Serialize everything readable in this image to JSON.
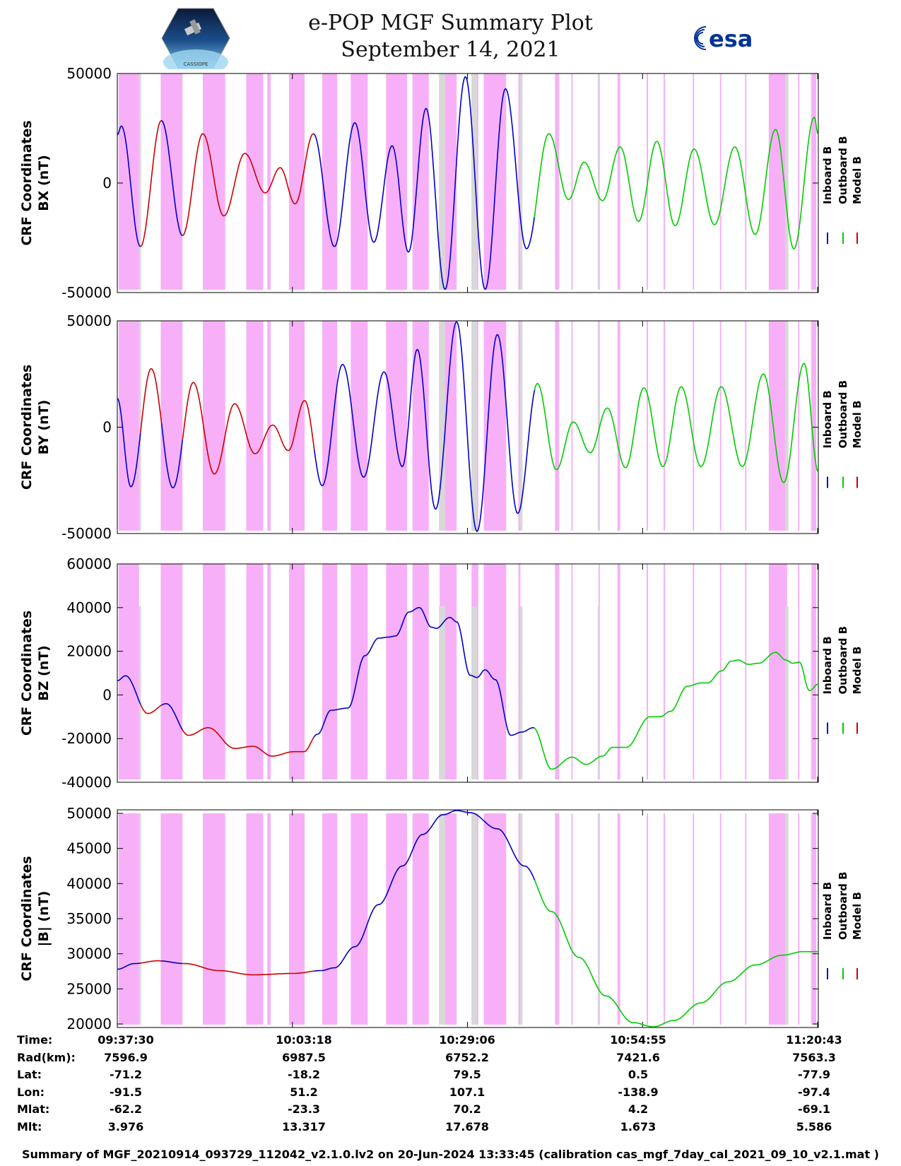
{
  "header": {
    "title": "e-POP MGF Summary Plot",
    "date": "September 14, 2021",
    "logo_left": "cassiope-satellite-logo",
    "logo_right_text": "esa",
    "logo_left_caption": "CASSIOPE"
  },
  "colors": {
    "inboard": "#0000cc",
    "outboard": "#00cc00",
    "model": "#cc0000",
    "band_magenta": "#f7b0f7",
    "band_gray": "#d8d8d8",
    "esa_blue": "#003399"
  },
  "chart_data": [
    {
      "type": "line",
      "ylabel": "CRF Coordinates BX (nT)",
      "ylabel_lines": [
        "CRF Coordinates",
        "BX (nT)"
      ],
      "ylim": [
        -50000,
        50000
      ],
      "yticks": [
        -50000,
        0,
        50000
      ],
      "xlim_minutes": [
        0,
        103.3
      ],
      "legend": [
        "Inboard B",
        "Outboard B",
        "Model B"
      ],
      "extrema": [
        [
          0,
          22000
        ],
        [
          0.6,
          26000
        ],
        [
          3.4,
          -29000
        ],
        [
          6.5,
          28500
        ],
        [
          9.6,
          -24000
        ],
        [
          12.6,
          22500
        ],
        [
          15.7,
          -15000
        ],
        [
          18.8,
          13500
        ],
        [
          21.8,
          -4500
        ],
        [
          24.0,
          7000
        ],
        [
          26.2,
          -9500
        ],
        [
          28.9,
          22500
        ],
        [
          32.0,
          -29000
        ],
        [
          35.0,
          27500
        ],
        [
          37.8,
          -27000
        ],
        [
          40.5,
          17000
        ],
        [
          42.9,
          -31500
        ],
        [
          45.5,
          34000
        ],
        [
          48.3,
          -48500
        ],
        [
          51.3,
          48500
        ],
        [
          54.2,
          -48500
        ],
        [
          57.2,
          43000
        ],
        [
          60.3,
          -30000
        ],
        [
          63.6,
          22500
        ],
        [
          66.5,
          -7500
        ],
        [
          68.8,
          9500
        ],
        [
          71.5,
          -8000
        ],
        [
          74.1,
          16500
        ],
        [
          76.8,
          -17500
        ],
        [
          79.5,
          19000
        ],
        [
          82.2,
          -19500
        ],
        [
          85.0,
          15500
        ],
        [
          88.0,
          -19000
        ],
        [
          91.0,
          16500
        ],
        [
          94.0,
          -23500
        ],
        [
          97.0,
          24500
        ],
        [
          99.7,
          -30000
        ],
        [
          102.7,
          30000
        ],
        [
          103.3,
          22000
        ]
      ]
    },
    {
      "type": "line",
      "ylabel": "CRF Coordinates BY (nT)",
      "ylabel_lines": [
        "CRF Coordinates",
        "BY (nT)"
      ],
      "ylim": [
        -50000,
        50000
      ],
      "yticks": [
        -50000,
        0,
        50000
      ],
      "xlim_minutes": [
        0,
        103.3
      ],
      "legend": [
        "Inboard B",
        "Outboard B",
        "Model B"
      ],
      "extrema": [
        [
          0,
          13500
        ],
        [
          2.0,
          -28000
        ],
        [
          5.0,
          27500
        ],
        [
          8.2,
          -28500
        ],
        [
          11.2,
          21000
        ],
        [
          14.3,
          -22000
        ],
        [
          17.3,
          11000
        ],
        [
          20.3,
          -12500
        ],
        [
          22.9,
          1000
        ],
        [
          25.2,
          -11000
        ],
        [
          27.6,
          12500
        ],
        [
          30.2,
          -27500
        ],
        [
          33.2,
          29500
        ],
        [
          36.3,
          -23500
        ],
        [
          39.3,
          26000
        ],
        [
          42.0,
          -18500
        ],
        [
          44.2,
          36500
        ],
        [
          46.9,
          -38500
        ],
        [
          50.0,
          49500
        ],
        [
          53.0,
          -49000
        ],
        [
          56.0,
          43500
        ],
        [
          59.0,
          -40500
        ],
        [
          61.9,
          20500
        ],
        [
          64.7,
          -20000
        ],
        [
          67.2,
          2500
        ],
        [
          69.7,
          -12000
        ],
        [
          72.2,
          9000
        ],
        [
          74.9,
          -19000
        ],
        [
          77.6,
          18500
        ],
        [
          80.4,
          -18500
        ],
        [
          83.1,
          19000
        ],
        [
          86.0,
          -18500
        ],
        [
          89.0,
          19000
        ],
        [
          92.1,
          -18500
        ],
        [
          95.2,
          25000
        ],
        [
          98.2,
          -26000
        ],
        [
          101.2,
          30000
        ],
        [
          103.3,
          -21000
        ]
      ]
    },
    {
      "type": "line",
      "ylabel": "CRF Coordinates BZ (nT)",
      "ylabel_lines": [
        "CRF Coordinates",
        "BZ (nT)"
      ],
      "ylim": [
        -40000,
        60000
      ],
      "yticks": [
        -40000,
        -20000,
        0,
        20000,
        40000,
        60000
      ],
      "xlim_minutes": [
        0,
        103.3
      ],
      "legend": [
        "Inboard B",
        "Outboard B",
        "Model B"
      ],
      "extrema": [
        [
          0,
          6500
        ],
        [
          1.2,
          8800
        ],
        [
          4.5,
          -8500
        ],
        [
          7.2,
          -4000
        ],
        [
          10.5,
          -18500
        ],
        [
          13.4,
          -15000
        ],
        [
          17.3,
          -24500
        ],
        [
          20.0,
          -23500
        ],
        [
          22.8,
          -28000
        ],
        [
          26.0,
          -26000
        ],
        [
          27.5,
          -26000
        ],
        [
          29.5,
          -18000
        ],
        [
          31.5,
          -7000
        ],
        [
          34.0,
          -6000
        ],
        [
          36.5,
          18000
        ],
        [
          38.5,
          26000
        ],
        [
          40.0,
          26500
        ],
        [
          41.0,
          27000
        ],
        [
          43.0,
          38000
        ],
        [
          44.5,
          40000
        ],
        [
          46.3,
          31000
        ],
        [
          47.0,
          30500
        ],
        [
          49.0,
          35500
        ],
        [
          50.0,
          33500
        ],
        [
          52.0,
          9000
        ],
        [
          53.0,
          8000
        ],
        [
          54.2,
          11500
        ],
        [
          55.7,
          7000
        ],
        [
          58.0,
          -18500
        ],
        [
          59.6,
          -17000
        ],
        [
          61.3,
          -15000
        ],
        [
          64.0,
          -34000
        ],
        [
          67.0,
          -28500
        ],
        [
          69.1,
          -31800
        ],
        [
          71.5,
          -28000
        ],
        [
          73.0,
          -24000
        ],
        [
          75.0,
          -24000
        ],
        [
          78.5,
          -10000
        ],
        [
          80.0,
          -10000
        ],
        [
          81.5,
          -7500
        ],
        [
          84.0,
          4000
        ],
        [
          86.0,
          5500
        ],
        [
          87.0,
          5500
        ],
        [
          89.0,
          11000
        ],
        [
          90.5,
          15500
        ],
        [
          91.5,
          16000
        ],
        [
          93.0,
          14000
        ],
        [
          94.5,
          14500
        ],
        [
          97.0,
          19500
        ],
        [
          98.5,
          16000
        ],
        [
          99.5,
          14500
        ],
        [
          100.5,
          15000
        ],
        [
          102.0,
          2000
        ],
        [
          103.3,
          5000
        ]
      ]
    },
    {
      "type": "line",
      "ylabel": "CRF Coordinates |B| (nT)",
      "ylabel_lines": [
        "CRF Coordinates",
        "|B| (nT)"
      ],
      "ylim": [
        19500,
        50500
      ],
      "yticks": [
        20000,
        25000,
        30000,
        35000,
        40000,
        45000,
        50000
      ],
      "xlim_minutes": [
        0,
        103.3
      ],
      "legend": [
        "Inboard B",
        "Outboard B",
        "Model B"
      ],
      "extrema": [
        [
          0,
          27800
        ],
        [
          2.5,
          28600
        ],
        [
          6.0,
          29000
        ],
        [
          10.0,
          28600
        ],
        [
          15.0,
          27600
        ],
        [
          20.0,
          27000
        ],
        [
          26.0,
          27200
        ],
        [
          30.0,
          27600
        ],
        [
          32.0,
          28000
        ],
        [
          35.0,
          31000
        ],
        [
          38.5,
          37000
        ],
        [
          42.0,
          42500
        ],
        [
          45.0,
          47000
        ],
        [
          48.0,
          49800
        ],
        [
          50.0,
          50400
        ],
        [
          52.0,
          50100
        ],
        [
          56.0,
          47800
        ],
        [
          60.0,
          42500
        ],
        [
          64.0,
          36000
        ],
        [
          68.0,
          29500
        ],
        [
          72.0,
          24000
        ],
        [
          76.0,
          20200
        ],
        [
          79.0,
          19600
        ],
        [
          82.0,
          20500
        ],
        [
          86.0,
          23000
        ],
        [
          90.0,
          26000
        ],
        [
          94.0,
          28400
        ],
        [
          98.0,
          29800
        ],
        [
          101.0,
          30300
        ],
        [
          103.3,
          30300
        ]
      ]
    }
  ],
  "series_segments": [
    {
      "from": 0,
      "to": 3.4,
      "kind": "inboard"
    },
    {
      "from": 3.4,
      "to": 6.5,
      "kind": "model"
    },
    {
      "from": 6.5,
      "to": 9.6,
      "kind": "inboard"
    },
    {
      "from": 9.6,
      "to": 29.0,
      "kind": "model"
    },
    {
      "from": 29.0,
      "to": 61.5,
      "kind": "inboard"
    },
    {
      "from": 61.5,
      "to": 103.3,
      "kind": "outboard"
    }
  ],
  "magenta_bands": [
    [
      0.2,
      3.2
    ],
    [
      6.4,
      9.6
    ],
    [
      12.6,
      15.9
    ],
    [
      19.0,
      21.5
    ],
    [
      22.1,
      22.6
    ],
    [
      25.3,
      27.6
    ],
    [
      30.2,
      32.4
    ],
    [
      34.4,
      36.9
    ],
    [
      39.6,
      42.7
    ],
    [
      43.5,
      45.9
    ],
    [
      47.5,
      50.0
    ],
    [
      52.2,
      53.2
    ],
    [
      54.0,
      57.3
    ],
    [
      59.1,
      59.4
    ],
    [
      64.5,
      65.1
    ],
    [
      66.9,
      67.1
    ],
    [
      70.9,
      71.1
    ],
    [
      73.7,
      74.1
    ],
    [
      78.0,
      78.2
    ],
    [
      80.5,
      80.7
    ],
    [
      84.8,
      85.0
    ],
    [
      88.8,
      89.0
    ],
    [
      92.5,
      92.7
    ],
    [
      96.0,
      98.7
    ],
    [
      100.3,
      100.5
    ],
    [
      102.3,
      103.0
    ]
  ],
  "gray_bands": [
    [
      3.2,
      3.5
    ],
    [
      47.4,
      48.3
    ],
    [
      52.2,
      53.0
    ],
    [
      59.3,
      59.7
    ],
    [
      70.8,
      70.9
    ],
    [
      98.4,
      98.9
    ],
    [
      102.2,
      102.3
    ]
  ],
  "x_tick_minutes": [
    0,
    25.8,
    51.6,
    77.4,
    103.2
  ],
  "info_table": {
    "labels": [
      "Time:",
      "Rad(km):",
      "Lat:",
      "Lon:",
      "Mlat:",
      "Mlt:"
    ],
    "columns": [
      [
        "09:37:30",
        "7596.9",
        "-71.2",
        "-91.5",
        "-62.2",
        "3.976"
      ],
      [
        "10:03:18",
        "6987.5",
        "-18.2",
        "51.2",
        "-23.3",
        "13.317"
      ],
      [
        "10:29:06",
        "6752.2",
        "79.5",
        "107.1",
        "70.2",
        "17.678"
      ],
      [
        "10:54:55",
        "7421.6",
        "0.5",
        "-138.9",
        "4.2",
        "1.673"
      ],
      [
        "11:20:43",
        "7563.3",
        "-77.9",
        "-97.4",
        "-69.1",
        "5.586"
      ]
    ]
  },
  "footer": "Summary of MGF_20210914_093729_112042_v2.1.0.lv2 on 20-Jun-2024 13:33:45 (calibration cas_mgf_7day_cal_2021_09_10_v2.1.mat )"
}
